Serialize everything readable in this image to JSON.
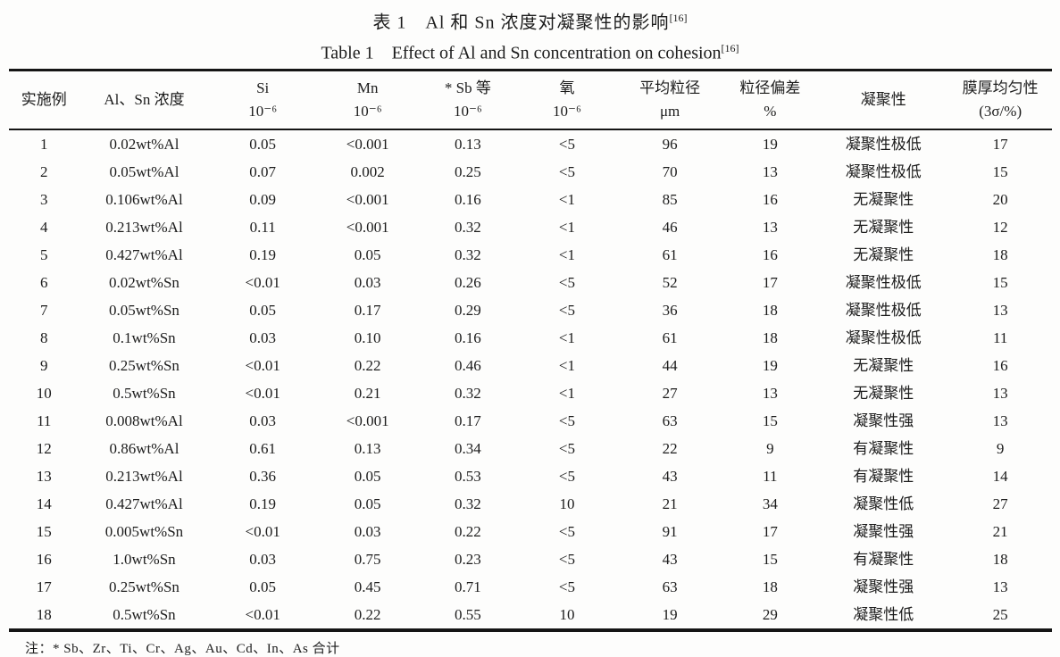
{
  "page": {
    "background_color": "#fdfdfc",
    "text_color": "#1c1c1c",
    "rule_color": "#151515"
  },
  "title": {
    "zh": {
      "text": "表 1　Al 和 Sn 浓度对凝聚性的影响",
      "sup": "[16]"
    },
    "en": {
      "text": "Table 1　Effect of Al and Sn concentration on cohesion",
      "sup": "[16]"
    }
  },
  "table": {
    "columns": [
      {
        "line1": "实施例",
        "line2": ""
      },
      {
        "line1": "Al、Sn 浓度",
        "line2": ""
      },
      {
        "line1": "Si",
        "line2": "10⁻⁶"
      },
      {
        "line1": "Mn",
        "line2": "10⁻⁶"
      },
      {
        "line1": "* Sb 等",
        "line2": "10⁻⁶"
      },
      {
        "line1": "氧",
        "line2": "10⁻⁶"
      },
      {
        "line1": "平均粒径",
        "line2": "μm"
      },
      {
        "line1": "粒径偏差",
        "line2": "%"
      },
      {
        "line1": "凝聚性",
        "line2": ""
      },
      {
        "line1": "膜厚均匀性",
        "line2": "(3σ/%)"
      }
    ],
    "rows": [
      [
        "1",
        "0.02wt%Al",
        "0.05",
        "<0.001",
        "0.13",
        "<5",
        "96",
        "19",
        "凝聚性极低",
        "17"
      ],
      [
        "2",
        "0.05wt%Al",
        "0.07",
        "0.002",
        "0.25",
        "<5",
        "70",
        "13",
        "凝聚性极低",
        "15"
      ],
      [
        "3",
        "0.106wt%Al",
        "0.09",
        "<0.001",
        "0.16",
        "<1",
        "85",
        "16",
        "无凝聚性",
        "20"
      ],
      [
        "4",
        "0.213wt%Al",
        "0.11",
        "<0.001",
        "0.32",
        "<1",
        "46",
        "13",
        "无凝聚性",
        "12"
      ],
      [
        "5",
        "0.427wt%Al",
        "0.19",
        "0.05",
        "0.32",
        "<1",
        "61",
        "16",
        "无凝聚性",
        "18"
      ],
      [
        "6",
        "0.02wt%Sn",
        "<0.01",
        "0.03",
        "0.26",
        "<5",
        "52",
        "17",
        "凝聚性极低",
        "15"
      ],
      [
        "7",
        "0.05wt%Sn",
        "0.05",
        "0.17",
        "0.29",
        "<5",
        "36",
        "18",
        "凝聚性极低",
        "13"
      ],
      [
        "8",
        "0.1wt%Sn",
        "0.03",
        "0.10",
        "0.16",
        "<1",
        "61",
        "18",
        "凝聚性极低",
        "11"
      ],
      [
        "9",
        "0.25wt%Sn",
        "<0.01",
        "0.22",
        "0.46",
        "<1",
        "44",
        "19",
        "无凝聚性",
        "16"
      ],
      [
        "10",
        "0.5wt%Sn",
        "<0.01",
        "0.21",
        "0.32",
        "<1",
        "27",
        "13",
        "无凝聚性",
        "13"
      ],
      [
        "11",
        "0.008wt%Al",
        "0.03",
        "<0.001",
        "0.17",
        "<5",
        "63",
        "15",
        "凝聚性强",
        "13"
      ],
      [
        "12",
        "0.86wt%Al",
        "0.61",
        "0.13",
        "0.34",
        "<5",
        "22",
        "9",
        "有凝聚性",
        "9"
      ],
      [
        "13",
        "0.213wt%Al",
        "0.36",
        "0.05",
        "0.53",
        "<5",
        "43",
        "11",
        "有凝聚性",
        "14"
      ],
      [
        "14",
        "0.427wt%Al",
        "0.19",
        "0.05",
        "0.32",
        "10",
        "21",
        "34",
        "凝聚性低",
        "27"
      ],
      [
        "15",
        "0.005wt%Sn",
        "<0.01",
        "0.03",
        "0.22",
        "<5",
        "91",
        "17",
        "凝聚性强",
        "21"
      ],
      [
        "16",
        "1.0wt%Sn",
        "0.03",
        "0.75",
        "0.23",
        "<5",
        "43",
        "15",
        "有凝聚性",
        "18"
      ],
      [
        "17",
        "0.25wt%Sn",
        "0.05",
        "0.45",
        "0.71",
        "<5",
        "63",
        "18",
        "凝聚性强",
        "13"
      ],
      [
        "18",
        "0.5wt%Sn",
        "<0.01",
        "0.22",
        "0.55",
        "10",
        "19",
        "29",
        "凝聚性低",
        "25"
      ]
    ],
    "column_widths_pct": [
      6.8,
      12.4,
      10.3,
      9.8,
      9.4,
      9.6,
      10.1,
      9.1,
      12.6,
      9.8
    ]
  },
  "footnote": "注：* Sb、Zr、Ti、Cr、Ag、Au、Cd、In、As 合计"
}
